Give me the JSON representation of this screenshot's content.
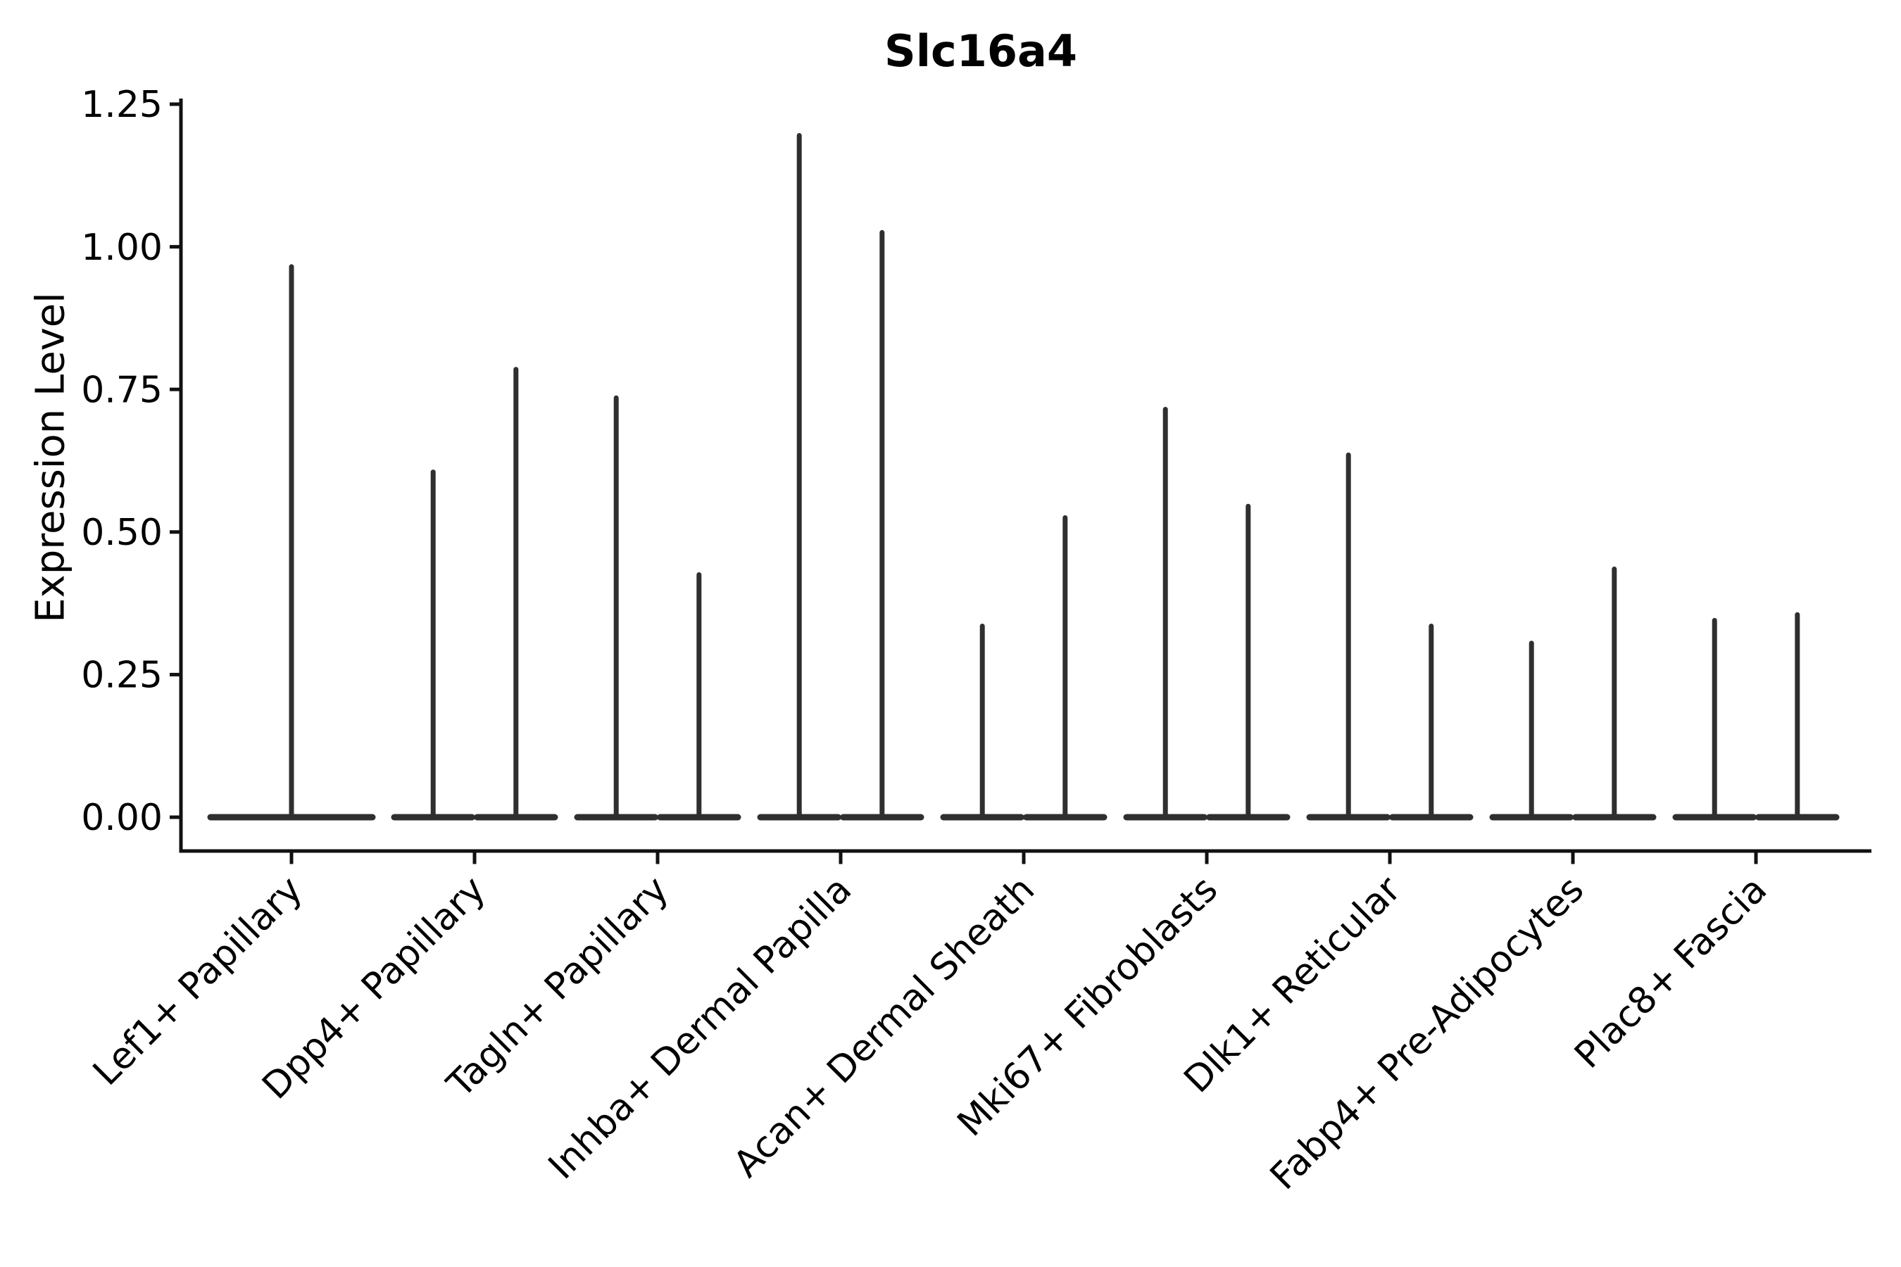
{
  "chart_data": {
    "type": "violin",
    "title": "Slc16a4",
    "ylabel": "Expression Level",
    "xlabel": "",
    "ylim": [
      0,
      1.25
    ],
    "yticks": [
      0,
      0.25,
      0.5,
      0.75,
      1.0,
      1.25
    ],
    "ytick_labels": [
      "0.00",
      "0.25",
      "0.50",
      "0.75",
      "1.00",
      "1.25"
    ],
    "categories": [
      "Lef1+ Papillary",
      "Dpp4+ Papillary",
      "Tagln+ Papillary",
      "Inhba+ Dermal Papilla",
      "Acan+ Dermal Sheath",
      "Mki67+ Fibroblasts",
      "Dlk1+ Reticular",
      "Fabp4+ Pre-Adipocytes",
      "Plac8+ Fascia"
    ],
    "violin_peaks_per_category": [
      [
        0.97
      ],
      [
        0.61,
        0.79
      ],
      [
        0.74,
        0.43
      ],
      [
        1.2,
        1.03
      ],
      [
        0.34,
        0.53
      ],
      [
        0.72,
        0.55
      ],
      [
        0.64,
        0.34
      ],
      [
        0.31,
        0.44
      ],
      [
        0.35,
        0.36
      ]
    ],
    "legend": null,
    "grid": false,
    "colors": {
      "violin": "#2f2f2f",
      "axis": "#111111",
      "text": "#000000",
      "background": "#ffffff"
    }
  }
}
